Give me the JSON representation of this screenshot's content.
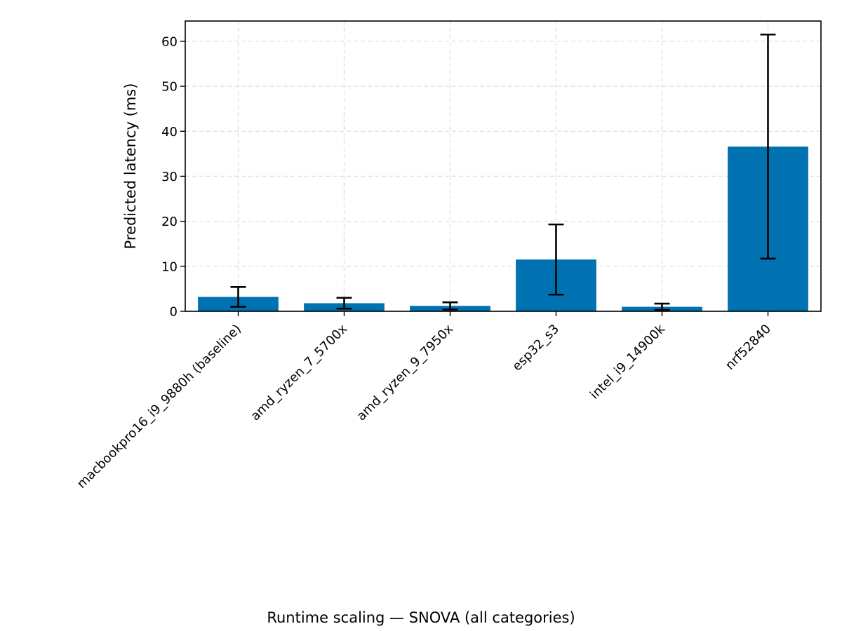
{
  "chart_data": {
    "type": "bar",
    "categories": [
      "macbookpro16_i9_9880h (baseline)",
      "amd_ryzen_7_5700x",
      "amd_ryzen_9_7950x",
      "esp32_s3",
      "intel_i9_14900k",
      "nrf52840"
    ],
    "values": [
      3.2,
      1.8,
      1.2,
      11.5,
      1.0,
      36.6
    ],
    "error_low": [
      1.0,
      0.6,
      0.4,
      3.7,
      0.3,
      11.7
    ],
    "error_high": [
      5.4,
      3.0,
      2.0,
      19.3,
      1.7,
      61.5
    ],
    "title": "",
    "xlabel": "",
    "ylabel": "Predicted latency (ms)",
    "caption": "Runtime scaling — SNOVA (all categories)",
    "ylim": [
      0,
      64.5
    ],
    "yticks": [
      0,
      10,
      20,
      30,
      40,
      50,
      60
    ],
    "grid": true,
    "legend": "none",
    "colors": {
      "bar": "#0072b2",
      "errorbar": "#000000",
      "grid": "#e0e0e0",
      "axis": "#000000"
    }
  }
}
